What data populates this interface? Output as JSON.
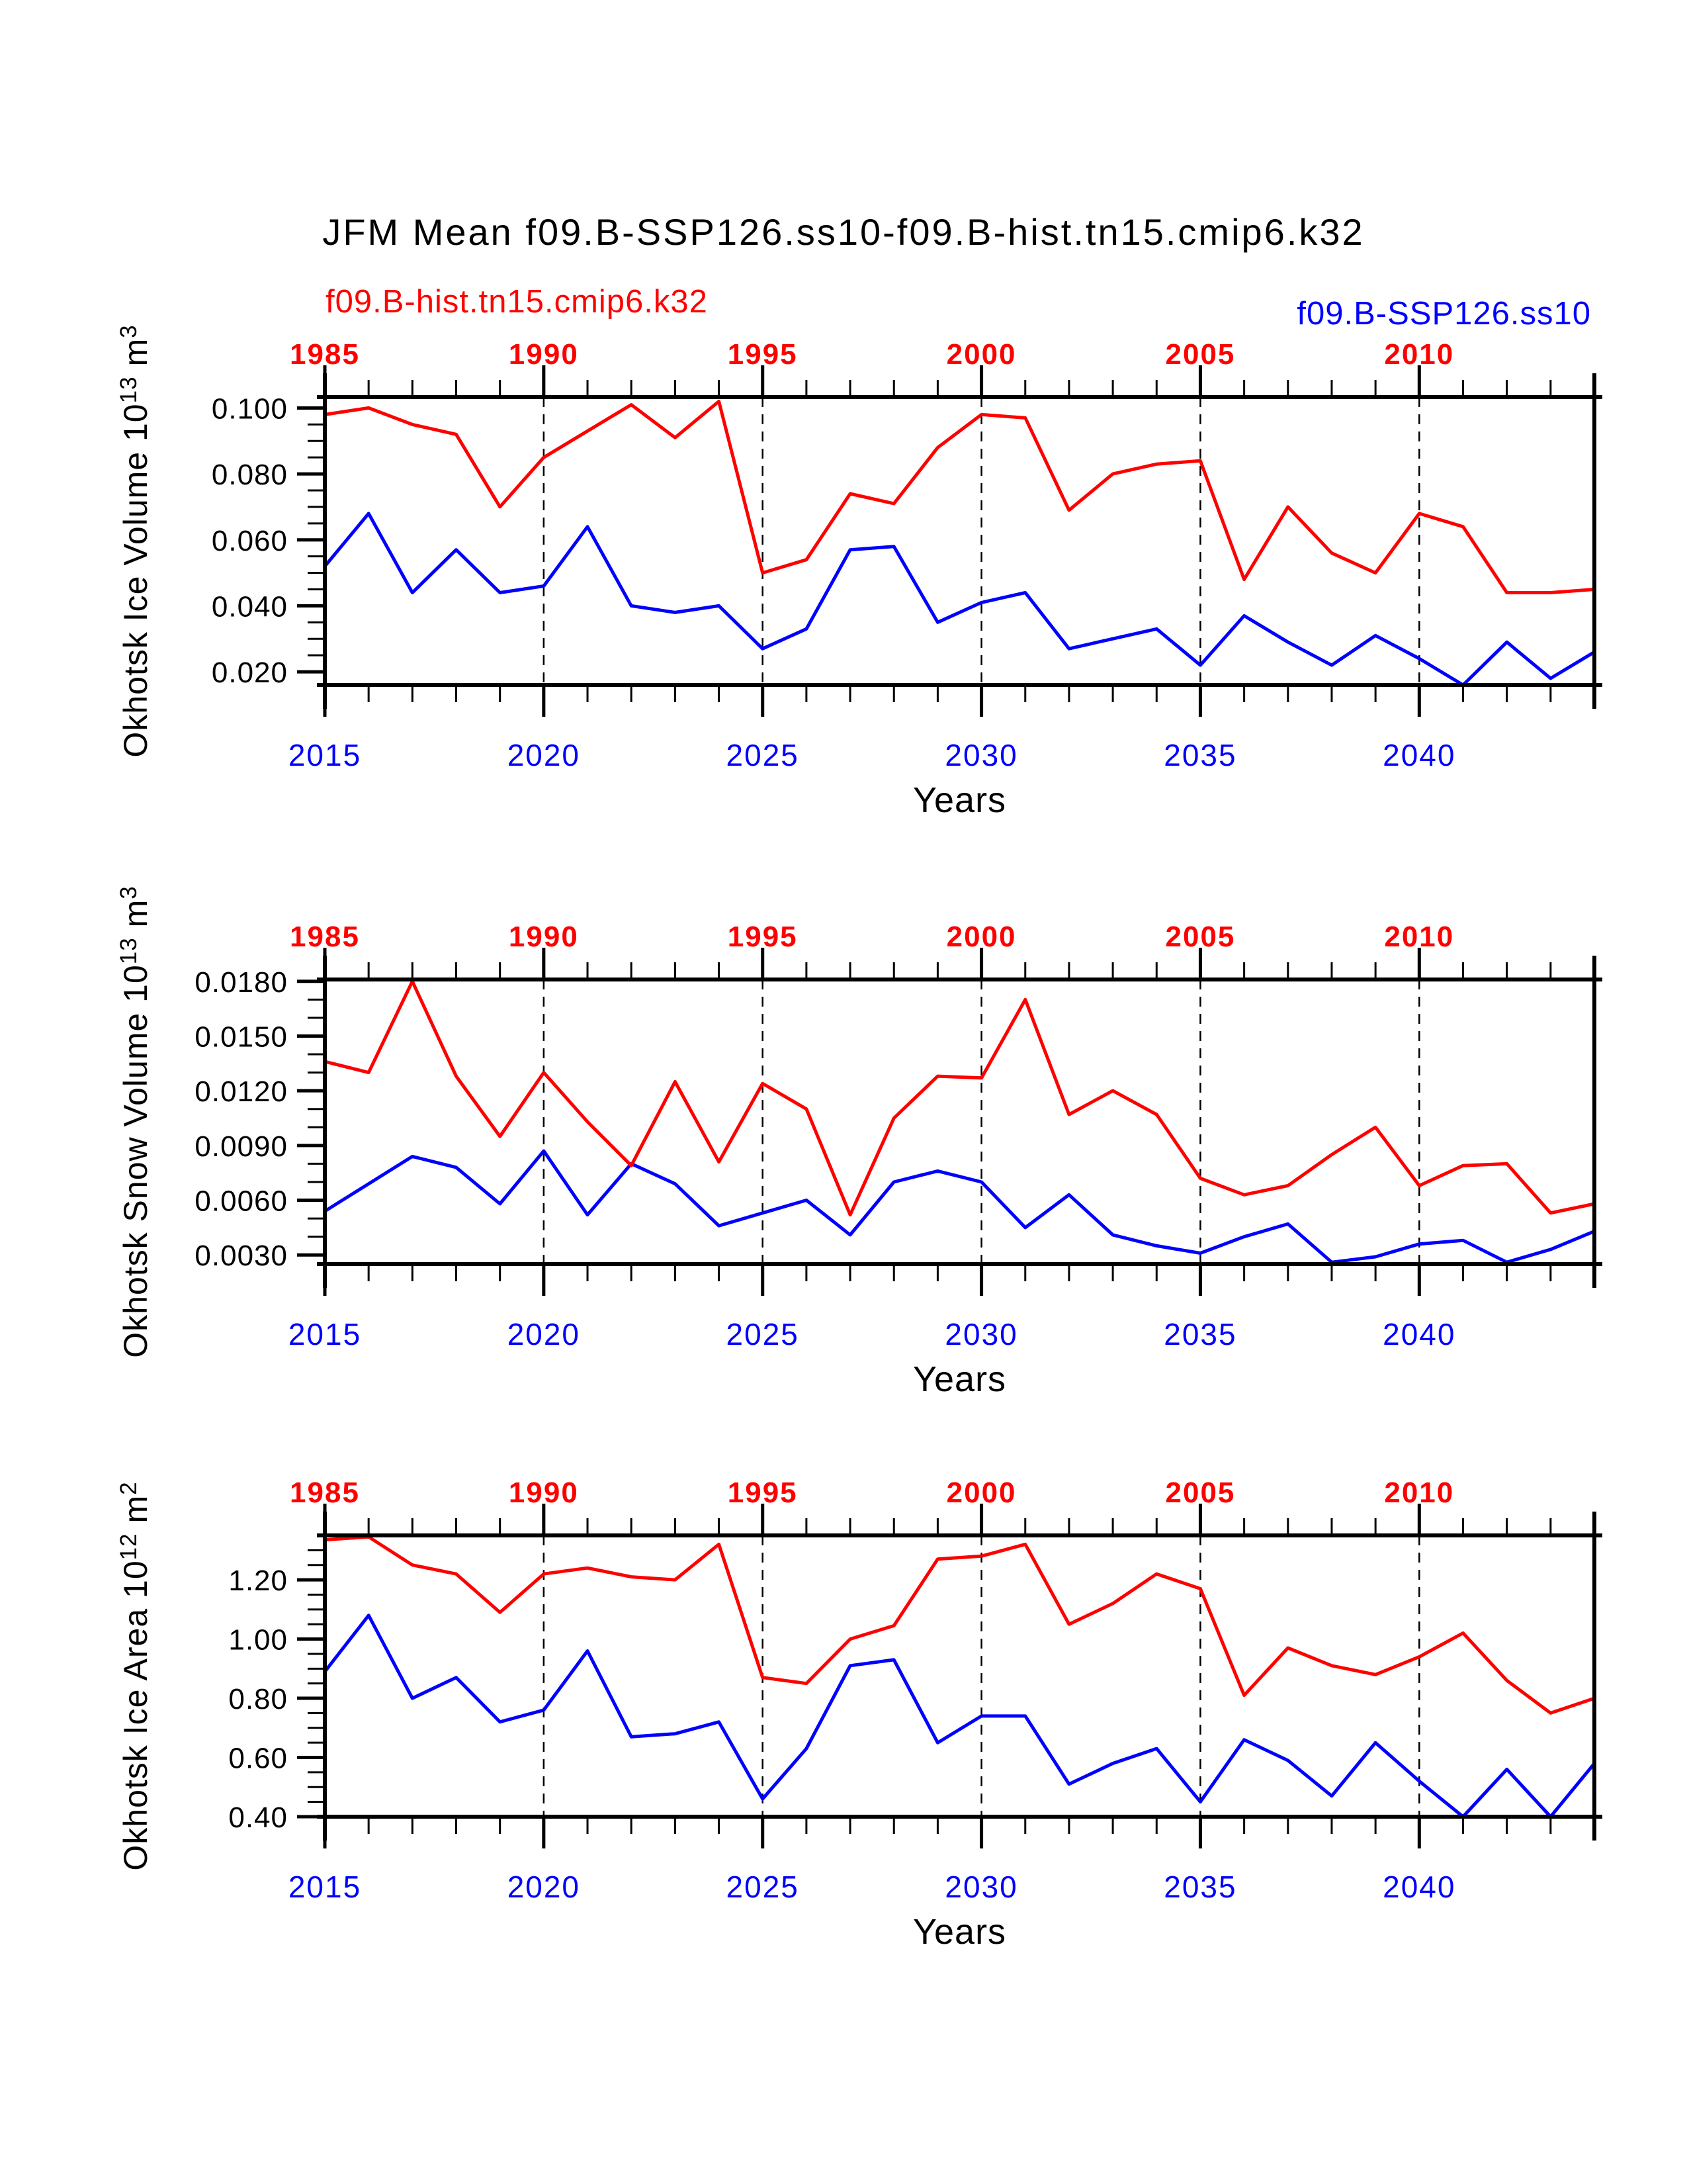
{
  "title": "JFM Mean f09.B-SSP126.ss10-f09.B-hist.tn15.cmip6.k32",
  "legend": {
    "hist_label": "f09.B-hist.tn15.cmip6.k32",
    "ssp_label": "f09.B-SSP126.ss10",
    "hist_color": "#ff0000",
    "ssp_color": "#0000ff",
    "position": "top"
  },
  "colors": {
    "background": "#ffffff",
    "axis": "#000000",
    "hist_series": "#ff0000",
    "ssp_series": "#0000ff",
    "top_axis_labels": "#ff0000",
    "bottom_axis_labels": "#0000ff",
    "gridlines": "#000000"
  },
  "chart_data": [
    {
      "type": "line",
      "panel": "okhotsk-ice-volume",
      "ylabel": "Okhotsk Ice Volume 10^13 m^3",
      "ylabel_parts": [
        {
          "t": "Okhotsk Ice Volume 10"
        },
        {
          "sup": "13"
        },
        {
          "t": " m"
        },
        {
          "sup": "3"
        }
      ],
      "xlabel": "Years",
      "x_years": [
        2015,
        2016,
        2017,
        2018,
        2019,
        2020,
        2021,
        2022,
        2023,
        2024,
        2025,
        2026,
        2027,
        2028,
        2029,
        2030,
        2031,
        2032,
        2033,
        2034,
        2035,
        2036,
        2037,
        2038,
        2039,
        2040,
        2041,
        2042,
        2043,
        2044
      ],
      "hist_x_years": [
        1985,
        1986,
        1987,
        1988,
        1989,
        1990,
        1991,
        1992,
        1993,
        1994,
        1995,
        1996,
        1997,
        1998,
        1999,
        2000,
        2001,
        2002,
        2003,
        2004,
        2005,
        2006,
        2007,
        2008,
        2009,
        2010,
        2011,
        2012,
        2013,
        2014
      ],
      "top_axis": {
        "color": "#ff0000",
        "bold": true,
        "tick_label_years": [
          "1985",
          "1990",
          "1995",
          "2000",
          "2005",
          "2010"
        ]
      },
      "bottom_axis": {
        "color": "#0000ff",
        "bold": false,
        "tick_label_years": [
          "2015",
          "2020",
          "2025",
          "2030",
          "2035",
          "2040"
        ]
      },
      "ylim": [
        0.016,
        0.1033
      ],
      "yticks": {
        "values": [
          0.02,
          0.04,
          0.06,
          0.08,
          0.1
        ],
        "labels": [
          "0.020",
          "0.040",
          "0.060",
          "0.080",
          "0.100"
        ]
      },
      "y_minor_step": 0.005,
      "x_minor_step_years": 1,
      "grid_years": [
        2020,
        2025,
        2030,
        2035,
        2040
      ],
      "grid_style": "dashed",
      "series": [
        {
          "name": "f09.B-hist.tn15.cmip6.k32",
          "color": "#ff0000",
          "values": [
            0.098,
            0.1,
            0.095,
            0.092,
            0.07,
            0.085,
            0.093,
            0.101,
            0.091,
            0.102,
            0.05,
            0.054,
            0.074,
            0.071,
            0.088,
            0.098,
            0.097,
            0.069,
            0.08,
            0.083,
            0.084,
            0.048,
            0.07,
            0.056,
            0.05,
            0.068,
            0.064,
            0.044,
            0.044,
            0.045
          ]
        },
        {
          "name": "f09.B-SSP126.ss10",
          "color": "#0000ff",
          "values": [
            0.052,
            0.068,
            0.044,
            0.057,
            0.044,
            0.046,
            0.064,
            0.04,
            0.038,
            0.04,
            0.027,
            0.033,
            0.057,
            0.058,
            0.035,
            0.041,
            0.044,
            0.027,
            0.03,
            0.033,
            0.022,
            0.037,
            0.029,
            0.022,
            0.031,
            0.024,
            0.016,
            0.029,
            0.018,
            0.026
          ]
        }
      ]
    },
    {
      "type": "line",
      "panel": "okhotsk-snow-volume",
      "ylabel": "Okhotsk Snow Volume 10^13 m^3",
      "ylabel_parts": [
        {
          "t": "Okhotsk Snow Volume 10"
        },
        {
          "sup": "13"
        },
        {
          "t": " m"
        },
        {
          "sup": "3"
        }
      ],
      "xlabel": "Years",
      "x_years": [
        2015,
        2016,
        2017,
        2018,
        2019,
        2020,
        2021,
        2022,
        2023,
        2024,
        2025,
        2026,
        2027,
        2028,
        2029,
        2030,
        2031,
        2032,
        2033,
        2034,
        2035,
        2036,
        2037,
        2038,
        2039,
        2040,
        2041,
        2042,
        2043,
        2044
      ],
      "hist_x_years": [
        1985,
        1986,
        1987,
        1988,
        1989,
        1990,
        1991,
        1992,
        1993,
        1994,
        1995,
        1996,
        1997,
        1998,
        1999,
        2000,
        2001,
        2002,
        2003,
        2004,
        2005,
        2006,
        2007,
        2008,
        2009,
        2010,
        2011,
        2012,
        2013,
        2014
      ],
      "top_axis": {
        "color": "#ff0000",
        "bold": true,
        "tick_label_years": [
          "1985",
          "1990",
          "1995",
          "2000",
          "2005",
          "2010"
        ]
      },
      "bottom_axis": {
        "color": "#0000ff",
        "bold": false,
        "tick_label_years": [
          "2015",
          "2020",
          "2025",
          "2030",
          "2035",
          "2040"
        ]
      },
      "ylim": [
        0.0025,
        0.0181
      ],
      "yticks": {
        "values": [
          0.003,
          0.006,
          0.009,
          0.012,
          0.015,
          0.018
        ],
        "labels": [
          "0.0030",
          "0.0060",
          "0.0090",
          "0.0120",
          "0.0150",
          "0.0180"
        ]
      },
      "y_minor_step": 0.001,
      "x_minor_step_years": 1,
      "grid_years": [
        2020,
        2025,
        2030,
        2035,
        2040
      ],
      "grid_style": "dashed",
      "series": [
        {
          "name": "f09.B-hist.tn15.cmip6.k32",
          "color": "#ff0000",
          "values": [
            0.0136,
            0.013,
            0.018,
            0.0128,
            0.0095,
            0.013,
            0.0103,
            0.0079,
            0.0125,
            0.0081,
            0.0124,
            0.011,
            0.0052,
            0.0105,
            0.0128,
            0.0127,
            0.017,
            0.0107,
            0.012,
            0.0107,
            0.0072,
            0.0063,
            0.0068,
            0.0085,
            0.01,
            0.0068,
            0.0079,
            0.008,
            0.0053,
            0.0058
          ]
        },
        {
          "name": "f09.B-SSP126.ss10",
          "color": "#0000ff",
          "values": [
            0.0054,
            0.0069,
            0.0084,
            0.0078,
            0.0058,
            0.0087,
            0.0052,
            0.008,
            0.0069,
            0.0046,
            0.0053,
            0.006,
            0.0041,
            0.007,
            0.0076,
            0.007,
            0.0045,
            0.0063,
            0.0041,
            0.0035,
            0.0031,
            0.004,
            0.0047,
            0.0026,
            0.0029,
            0.0036,
            0.0038,
            0.0026,
            0.0033,
            0.0043
          ]
        }
      ]
    },
    {
      "type": "line",
      "panel": "okhotsk-ice-area",
      "ylabel": "Okhotsk Ice Area 10^12 m^2",
      "ylabel_parts": [
        {
          "t": "Okhotsk Ice Area 10"
        },
        {
          "sup": "12"
        },
        {
          "t": " m"
        },
        {
          "sup": "2"
        }
      ],
      "xlabel": "Years",
      "x_years": [
        2015,
        2016,
        2017,
        2018,
        2019,
        2020,
        2021,
        2022,
        2023,
        2024,
        2025,
        2026,
        2027,
        2028,
        2029,
        2030,
        2031,
        2032,
        2033,
        2034,
        2035,
        2036,
        2037,
        2038,
        2039,
        2040,
        2041,
        2042,
        2043,
        2044
      ],
      "hist_x_years": [
        1985,
        1986,
        1987,
        1988,
        1989,
        1990,
        1991,
        1992,
        1993,
        1994,
        1995,
        1996,
        1997,
        1998,
        1999,
        2000,
        2001,
        2002,
        2003,
        2004,
        2005,
        2006,
        2007,
        2008,
        2009,
        2010,
        2011,
        2012,
        2013,
        2014
      ],
      "top_axis": {
        "color": "#ff0000",
        "bold": true,
        "tick_label_years": [
          "1985",
          "1990",
          "1995",
          "2000",
          "2005",
          "2010"
        ]
      },
      "bottom_axis": {
        "color": "#0000ff",
        "bold": false,
        "tick_label_years": [
          "2015",
          "2020",
          "2025",
          "2030",
          "2035",
          "2040"
        ]
      },
      "ylim": [
        0.4,
        1.35
      ],
      "yticks": {
        "values": [
          0.4,
          0.6,
          0.8,
          1.0,
          1.2
        ],
        "labels": [
          "0.40",
          "0.60",
          "0.80",
          "1.00",
          "1.20"
        ]
      },
      "y_minor_step": 0.05,
      "x_minor_step_years": 1,
      "grid_years": [
        2020,
        2025,
        2030,
        2035,
        2040
      ],
      "grid_style": "dashed",
      "series": [
        {
          "name": "f09.B-hist.tn15.cmip6.k32",
          "color": "#ff0000",
          "values": [
            1.335,
            1.345,
            1.25,
            1.22,
            1.09,
            1.22,
            1.24,
            1.21,
            1.2,
            1.32,
            0.87,
            0.85,
            1.0,
            1.045,
            1.27,
            1.28,
            1.32,
            1.05,
            1.12,
            1.22,
            1.17,
            0.81,
            0.97,
            0.91,
            0.88,
            0.94,
            1.02,
            0.86,
            0.75,
            0.8
          ]
        },
        {
          "name": "f09.B-SSP126.ss10",
          "color": "#0000ff",
          "values": [
            0.89,
            1.08,
            0.8,
            0.87,
            0.72,
            0.76,
            0.96,
            0.67,
            0.68,
            0.72,
            0.46,
            0.63,
            0.91,
            0.93,
            0.65,
            0.74,
            0.74,
            0.51,
            0.58,
            0.63,
            0.45,
            0.66,
            0.59,
            0.47,
            0.65,
            0.52,
            0.4,
            0.56,
            0.4,
            0.58
          ]
        }
      ]
    }
  ]
}
